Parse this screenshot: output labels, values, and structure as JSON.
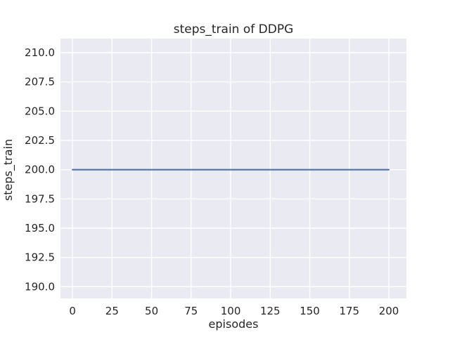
{
  "chart_data": {
    "type": "line",
    "title": "steps_train of DDPG",
    "xlabel": "episodes",
    "ylabel": "steps_train",
    "xlim": [
      -7.6,
      211.1
    ],
    "ylim": [
      189.0,
      211.2
    ],
    "x_ticks": [
      0,
      25,
      50,
      75,
      100,
      125,
      150,
      175,
      200
    ],
    "x_tick_labels": [
      "0",
      "25",
      "50",
      "75",
      "100",
      "125",
      "150",
      "175",
      "200"
    ],
    "y_ticks": [
      190.0,
      192.5,
      195.0,
      197.5,
      200.0,
      202.5,
      205.0,
      207.5,
      210.0
    ],
    "y_tick_labels": [
      "190.0",
      "192.5",
      "195.0",
      "197.5",
      "200.0",
      "202.5",
      "205.0",
      "207.5",
      "210.0"
    ],
    "grid": true,
    "legend": null,
    "series": [
      {
        "name": "steps_train",
        "x": [
          0,
          200
        ],
        "y": [
          200,
          200
        ],
        "description": "constant line at steps_train = 200 across all episodes"
      }
    ],
    "colors": {
      "line": "#4C72B0",
      "plot_background": "#EAEAF2",
      "grid": "#FFFFFF",
      "figure_background": "#FFFFFF",
      "text": "#262626"
    }
  }
}
